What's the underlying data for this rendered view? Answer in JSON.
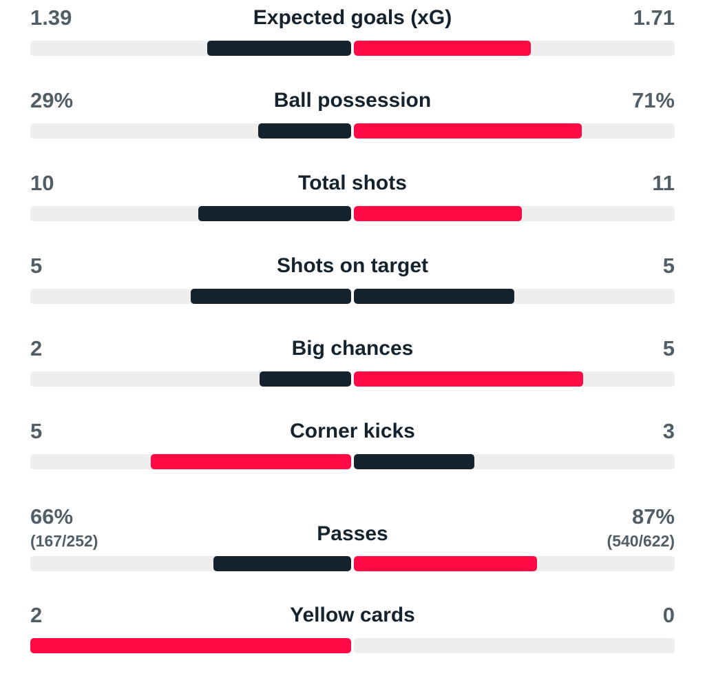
{
  "colors": {
    "home": "#14232d",
    "away": "#ff0a45",
    "track": "#eeeeee",
    "value_text": "#525e66",
    "label_text": "#14232d"
  },
  "stats": [
    {
      "label": "Expected goals (xG)",
      "home": "1.39",
      "away": "1.71",
      "home_fill": 0.448,
      "away_fill": 0.552,
      "home_color": "#14232d",
      "away_color": "#ff0a45"
    },
    {
      "label": "Ball possession",
      "home": "29%",
      "away": "71%",
      "home_fill": 0.29,
      "away_fill": 0.71,
      "home_color": "#14232d",
      "away_color": "#ff0a45"
    },
    {
      "label": "Total shots",
      "home": "10",
      "away": "11",
      "home_fill": 0.476,
      "away_fill": 0.524,
      "home_color": "#14232d",
      "away_color": "#ff0a45"
    },
    {
      "label": "Shots on target",
      "home": "5",
      "away": "5",
      "home_fill": 0.5,
      "away_fill": 0.5,
      "home_color": "#14232d",
      "away_color": "#14232d"
    },
    {
      "label": "Big chances",
      "home": "2",
      "away": "5",
      "home_fill": 0.286,
      "away_fill": 0.714,
      "home_color": "#14232d",
      "away_color": "#ff0a45"
    },
    {
      "label": "Corner kicks",
      "home": "5",
      "away": "3",
      "home_fill": 0.625,
      "away_fill": 0.375,
      "home_color": "#ff0a45",
      "away_color": "#14232d"
    },
    {
      "label": "Passes",
      "home": "66%",
      "away": "87%",
      "home_sub": "(167/252)",
      "away_sub": "(540/622)",
      "home_fill": 0.43,
      "away_fill": 0.57,
      "home_color": "#14232d",
      "away_color": "#ff0a45"
    },
    {
      "label": "Yellow cards",
      "home": "2",
      "away": "0",
      "home_fill": 1.0,
      "away_fill": 0.0,
      "home_color": "#ff0a45",
      "away_color": "#14232d"
    }
  ]
}
